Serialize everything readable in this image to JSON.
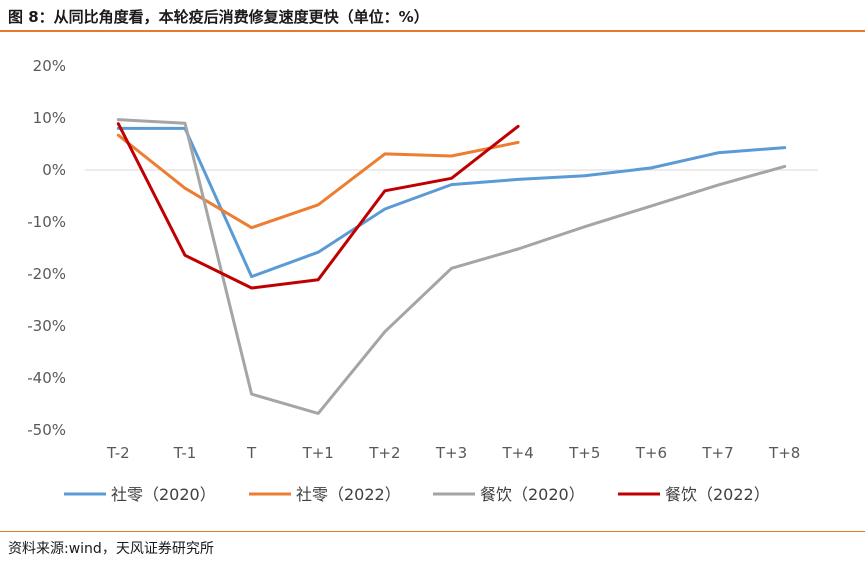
{
  "title": "图 8：从同比角度看，本轮疫后消费修复速度更快（单位：%）",
  "source": "资料来源:wind，天风证券研究所",
  "chart_data": {
    "type": "line",
    "categories": [
      "T-2",
      "T-1",
      "T",
      "T+1",
      "T+2",
      "T+3",
      "T+4",
      "T+5",
      "T+6",
      "T+7",
      "T+8"
    ],
    "y_ticks": [
      "20%",
      "10%",
      "0%",
      "-10%",
      "-20%",
      "-30%",
      "-40%",
      "-50%"
    ],
    "ylim": [
      -50,
      20
    ],
    "grid": false,
    "legend_position": "bottom",
    "series": [
      {
        "name": "社零（2020）",
        "color": "#5b9bd5",
        "values": [
          8.0,
          8.0,
          -20.5,
          -15.8,
          -7.5,
          -2.8,
          -1.8,
          -1.1,
          0.4,
          3.3,
          4.3
        ]
      },
      {
        "name": "社零（2022）",
        "color": "#ed7d31",
        "values": [
          6.7,
          -3.5,
          -11.1,
          -6.7,
          3.1,
          2.7,
          5.3,
          null,
          null,
          null,
          null
        ]
      },
      {
        "name": "餐饮（2020）",
        "color": "#a5a5a5",
        "values": [
          9.7,
          9.0,
          -43.1,
          -46.8,
          -31.1,
          -18.9,
          -15.2,
          -10.9,
          -6.9,
          -2.9,
          0.7
        ]
      },
      {
        "name": "餐饮（2022）",
        "color": "#c00000",
        "values": [
          8.9,
          -16.4,
          -22.7,
          -21.1,
          -4.0,
          -1.6,
          8.4,
          null,
          null,
          null,
          null
        ]
      }
    ]
  }
}
